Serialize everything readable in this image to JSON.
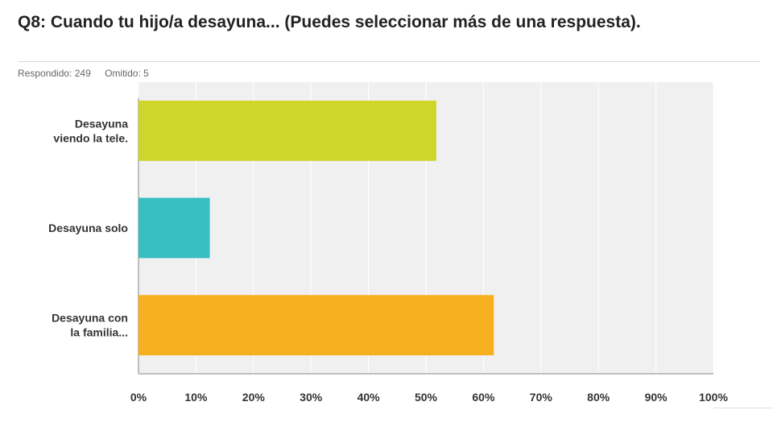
{
  "question": {
    "title": "Q8: Cuando tu hijo/a desayuna... (Puedes seleccionar más de una respuesta).",
    "answered": "Respondido: 249",
    "skipped": "Omitido: 5"
  },
  "chart_data": {
    "type": "bar",
    "orientation": "horizontal",
    "categories": [
      [
        "Desayuna",
        "viendo la tele."
      ],
      [
        "Desayuna solo"
      ],
      [
        "Desayuna con",
        "la familia..."
      ]
    ],
    "values": [
      51.8,
      12.4,
      61.8
    ],
    "colors": [
      "#cdd629",
      "#36bec0",
      "#f6b01f"
    ],
    "xlim": [
      0,
      100
    ],
    "xticks": [
      "0%",
      "10%",
      "20%",
      "30%",
      "40%",
      "50%",
      "60%",
      "70%",
      "80%",
      "90%",
      "100%"
    ],
    "grid": true,
    "title": "",
    "xlabel": "",
    "ylabel": ""
  }
}
